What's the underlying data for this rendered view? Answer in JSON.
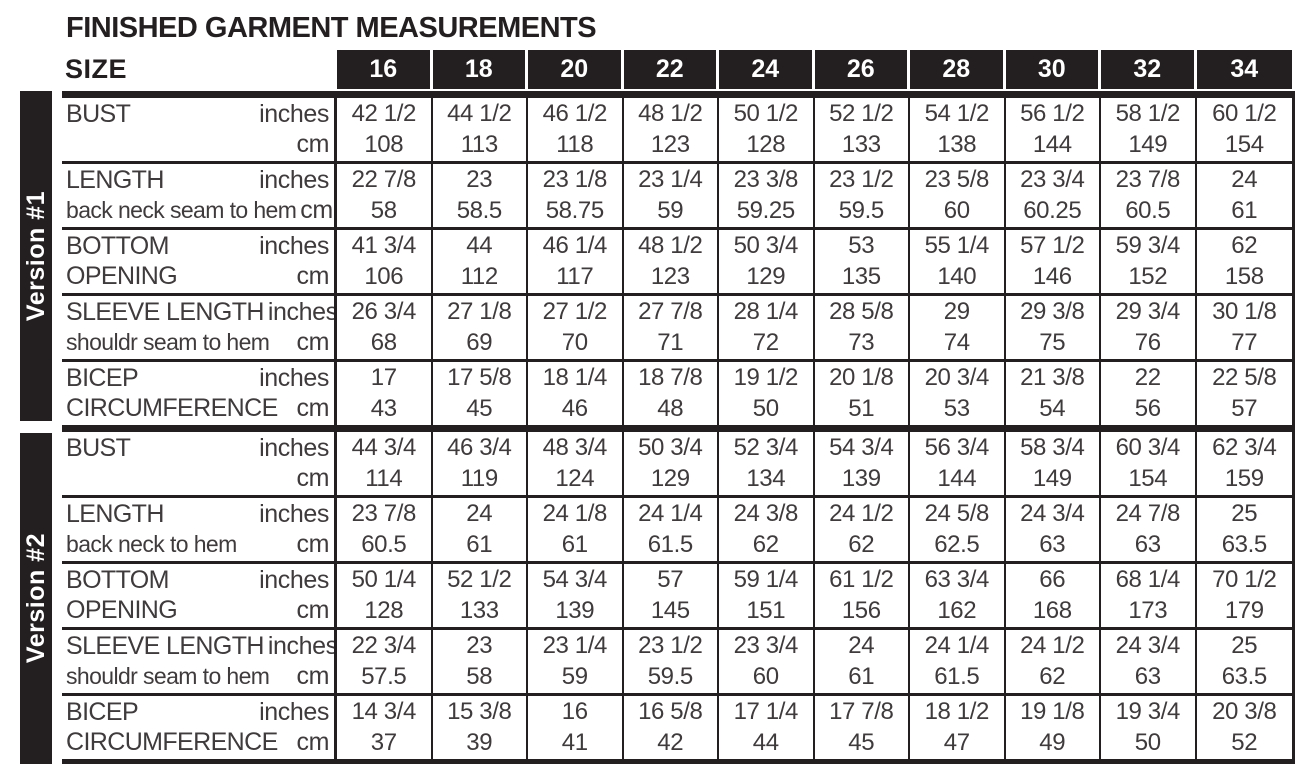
{
  "title": "FINISHED GARMENT MEASUREMENTS",
  "size_label": "SIZE",
  "sizes": [
    "16",
    "18",
    "20",
    "22",
    "24",
    "26",
    "28",
    "30",
    "32",
    "34"
  ],
  "colors": {
    "ink": "#231f20",
    "table_text": "#3f3b3c",
    "header_text": "#ffffff",
    "background": "#ffffff"
  },
  "versions": [
    {
      "label": "Version #1",
      "rows": [
        {
          "name": "BUST",
          "name2": "",
          "sub": "",
          "unit_top": "inches",
          "unit_bottom": "cm",
          "inches": [
            "42 1/2",
            "44 1/2",
            "46 1/2",
            "48 1/2",
            "50 1/2",
            "52 1/2",
            "54 1/2",
            "56 1/2",
            "58 1/2",
            "60 1/2"
          ],
          "cm": [
            "108",
            "113",
            "118",
            "123",
            "128",
            "133",
            "138",
            "144",
            "149",
            "154"
          ]
        },
        {
          "name": "LENGTH",
          "name2": "",
          "sub": "back neck seam to hem",
          "unit_top": "inches",
          "unit_bottom": "cm",
          "inches": [
            "22 7/8",
            "23",
            "23 1/8",
            "23 1/4",
            "23 3/8",
            "23 1/2",
            "23 5/8",
            "23 3/4",
            "23 7/8",
            "24"
          ],
          "cm": [
            "58",
            "58.5",
            "58.75",
            "59",
            "59.25",
            "59.5",
            "60",
            "60.25",
            "60.5",
            "61"
          ]
        },
        {
          "name": "BOTTOM",
          "name2": "OPENING",
          "sub": "",
          "unit_top": "inches",
          "unit_bottom": "cm",
          "inches": [
            "41 3/4",
            "44",
            "46 1/4",
            "48 1/2",
            "50 3/4",
            "53",
            "55 1/4",
            "57 1/2",
            "59 3/4",
            "62"
          ],
          "cm": [
            "106",
            "112",
            "117",
            "123",
            "129",
            "135",
            "140",
            "146",
            "152",
            "158"
          ]
        },
        {
          "name": "SLEEVE LENGTH",
          "name2": "",
          "sub": "shouldr seam to hem",
          "unit_top": "inches",
          "unit_bottom": "cm",
          "inches": [
            "26 3/4",
            "27 1/8",
            "27 1/2",
            "27 7/8",
            "28 1/4",
            "28 5/8",
            "29",
            "29 3/8",
            "29 3/4",
            "30 1/8"
          ],
          "cm": [
            "68",
            "69",
            "70",
            "71",
            "72",
            "73",
            "74",
            "75",
            "76",
            "77"
          ]
        },
        {
          "name": "BICEP",
          "name2": "CIRCUMFERENCE",
          "sub": "",
          "unit_top": "inches",
          "unit_bottom": "cm",
          "inches": [
            "17",
            "17 5/8",
            "18 1/4",
            "18 7/8",
            "19 1/2",
            "20 1/8",
            "20 3/4",
            "21 3/8",
            "22",
            "22 5/8"
          ],
          "cm": [
            "43",
            "45",
            "46",
            "48",
            "50",
            "51",
            "53",
            "54",
            "56",
            "57"
          ]
        }
      ]
    },
    {
      "label": "Version #2",
      "rows": [
        {
          "name": "BUST",
          "name2": "",
          "sub": "",
          "unit_top": "inches",
          "unit_bottom": "cm",
          "inches": [
            "44 3/4",
            "46 3/4",
            "48 3/4",
            "50 3/4",
            "52 3/4",
            "54 3/4",
            "56 3/4",
            "58 3/4",
            "60 3/4",
            "62 3/4"
          ],
          "cm": [
            "114",
            "119",
            "124",
            "129",
            "134",
            "139",
            "144",
            "149",
            "154",
            "159"
          ]
        },
        {
          "name": "LENGTH",
          "name2": "",
          "sub": "back neck to hem",
          "unit_top": "inches",
          "unit_bottom": "cm",
          "inches": [
            "23 7/8",
            "24",
            "24 1/8",
            "24 1/4",
            "24 3/8",
            "24 1/2",
            "24 5/8",
            "24 3/4",
            "24 7/8",
            "25"
          ],
          "cm": [
            "60.5",
            "61",
            "61",
            "61.5",
            "62",
            "62",
            "62.5",
            "63",
            "63",
            "63.5"
          ]
        },
        {
          "name": "BOTTOM",
          "name2": "OPENING",
          "sub": "",
          "unit_top": "inches",
          "unit_bottom": "cm",
          "inches": [
            "50 1/4",
            "52 1/2",
            "54 3/4",
            "57",
            "59 1/4",
            "61 1/2",
            "63 3/4",
            "66",
            "68 1/4",
            "70 1/2"
          ],
          "cm": [
            "128",
            "133",
            "139",
            "145",
            "151",
            "156",
            "162",
            "168",
            "173",
            "179"
          ]
        },
        {
          "name": "SLEEVE LENGTH",
          "name2": "",
          "sub": "shouldr seam to hem",
          "unit_top": "inches",
          "unit_bottom": "cm",
          "inches": [
            "22 3/4",
            "23",
            "23 1/4",
            "23 1/2",
            "23 3/4",
            "24",
            "24 1/4",
            "24 1/2",
            "24 3/4",
            "25"
          ],
          "cm": [
            "57.5",
            "58",
            "59",
            "59.5",
            "60",
            "61",
            "61.5",
            "62",
            "63",
            "63.5"
          ]
        },
        {
          "name": "BICEP",
          "name2": "CIRCUMFERENCE",
          "sub": "",
          "unit_top": "inches",
          "unit_bottom": "cm",
          "inches": [
            "14 3/4",
            "15 3/8",
            "16",
            "16 5/8",
            "17 1/4",
            "17 7/8",
            "18 1/2",
            "19 1/8",
            "19 3/4",
            "20 3/8"
          ],
          "cm": [
            "37",
            "39",
            "41",
            "42",
            "44",
            "45",
            "47",
            "49",
            "50",
            "52"
          ]
        }
      ]
    }
  ]
}
